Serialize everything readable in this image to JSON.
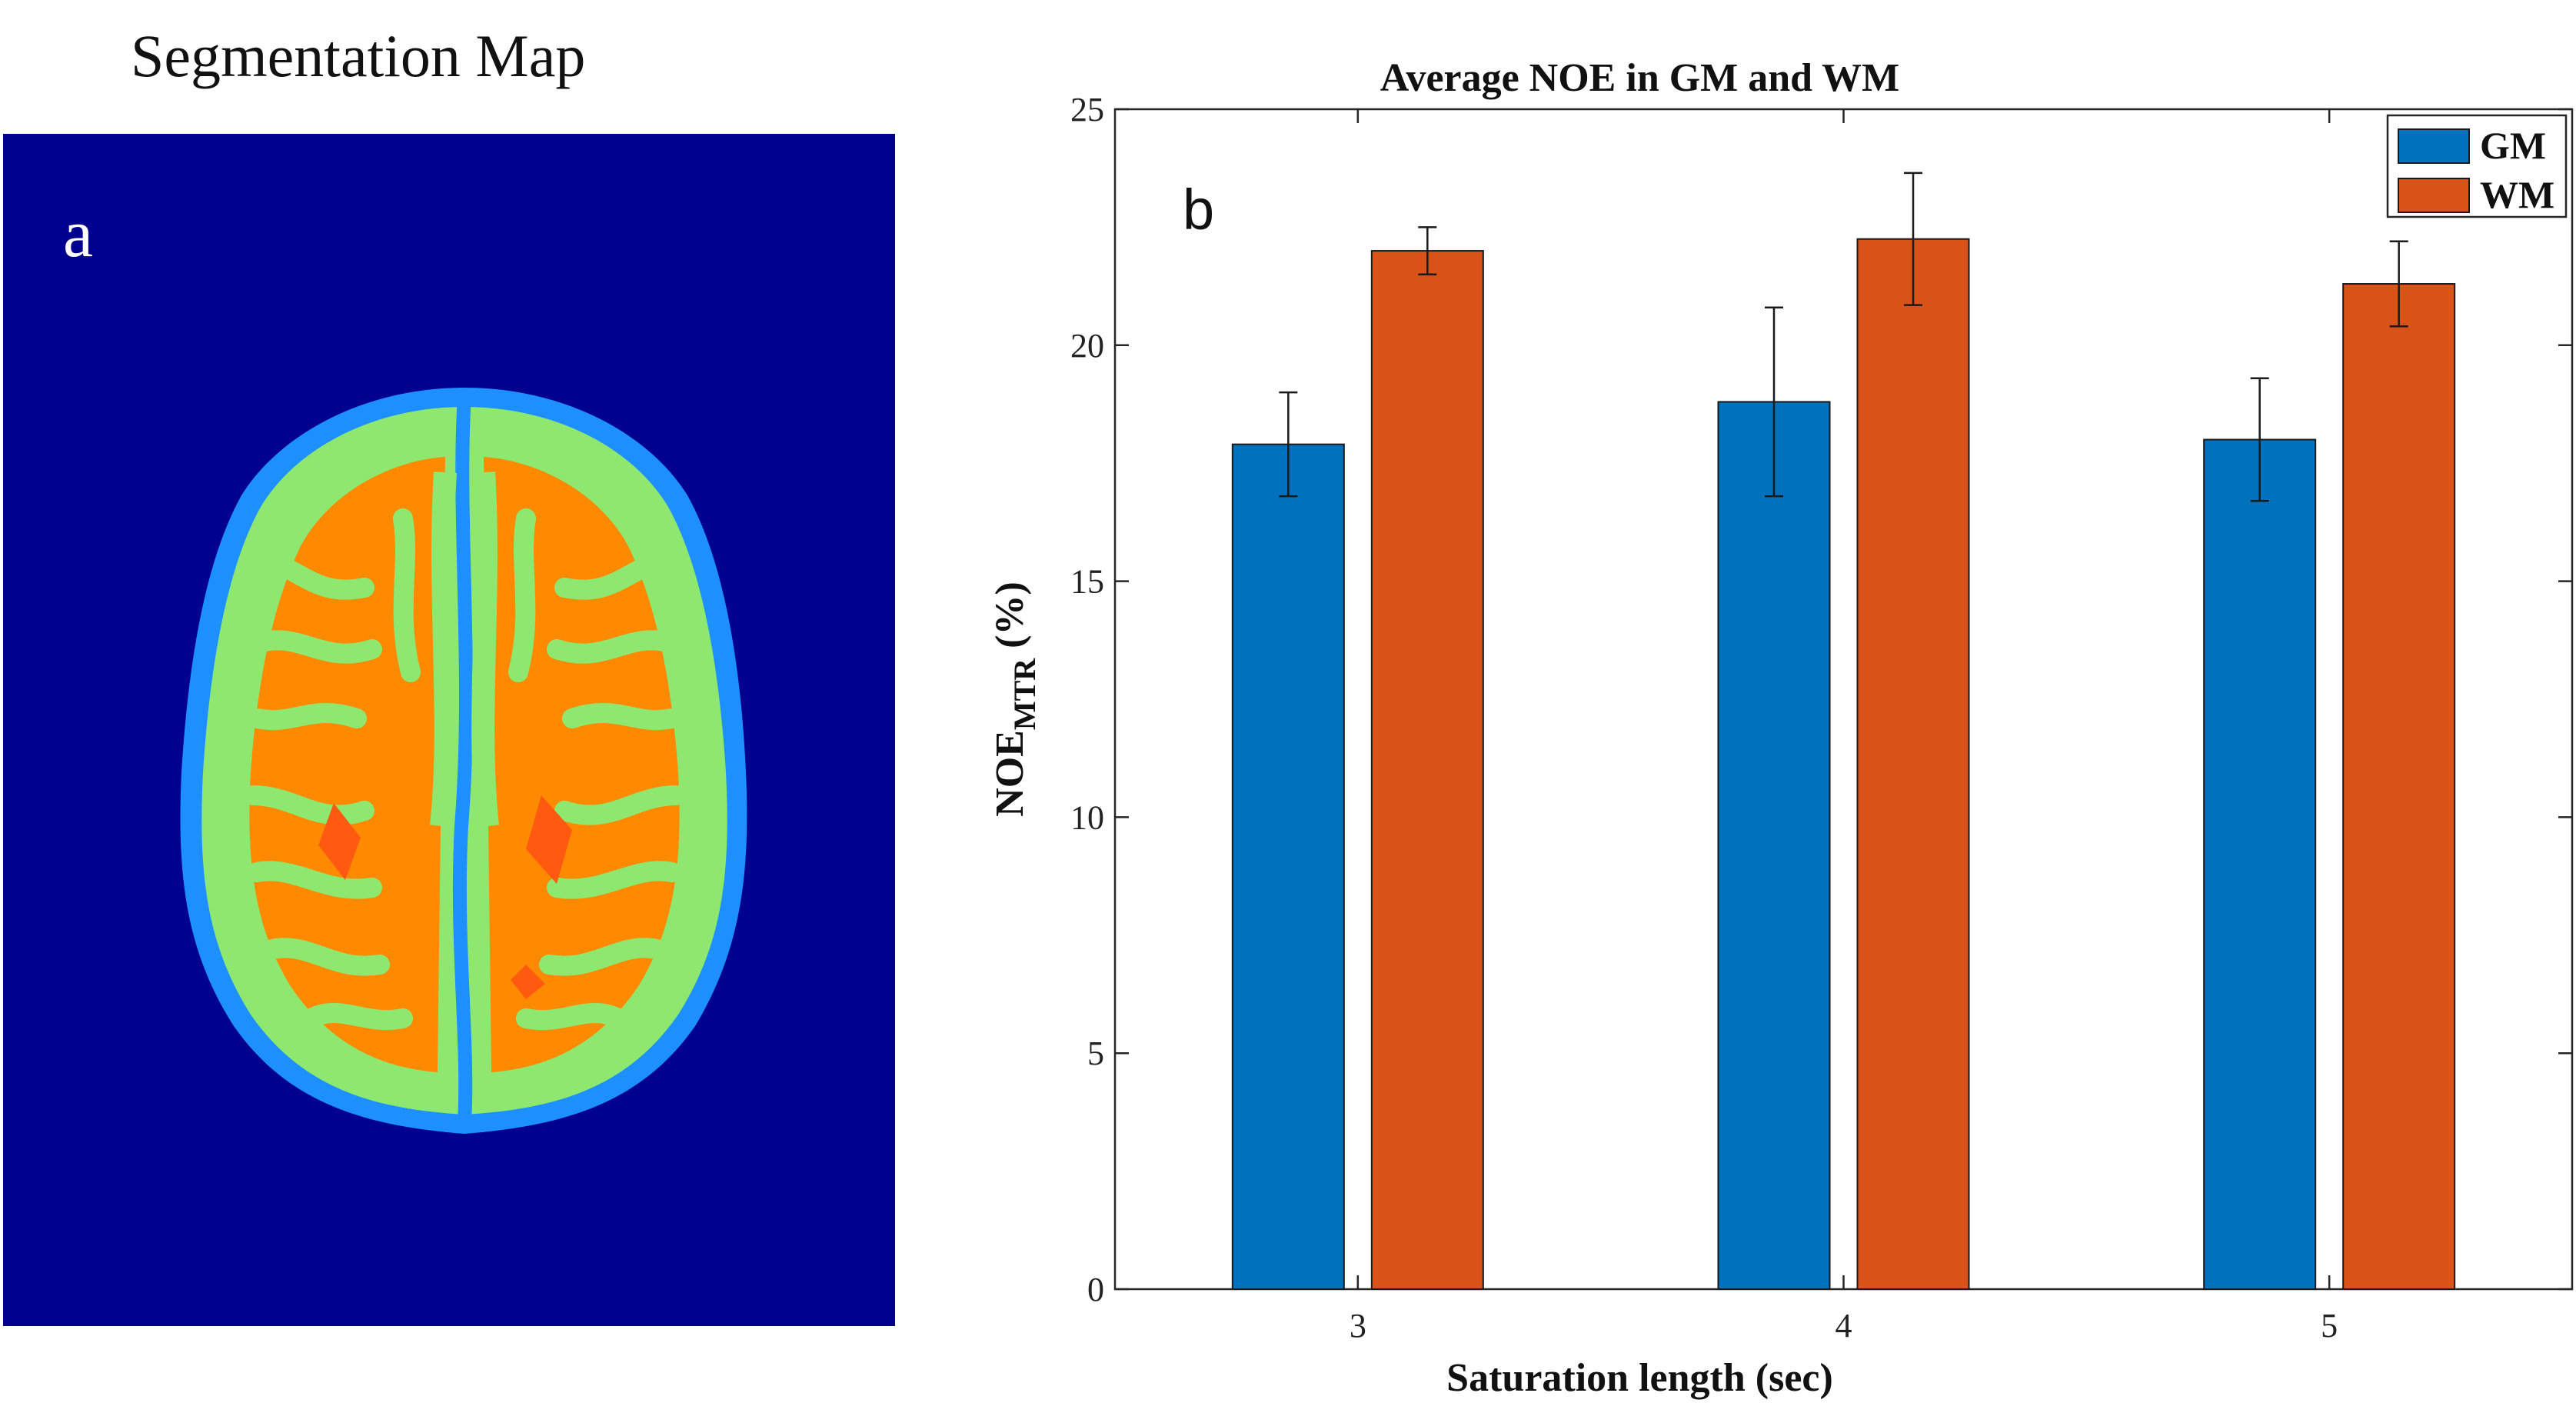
{
  "panel_a": {
    "title": "Segmentation Map",
    "label": "a",
    "colors": {
      "background": "#00008f",
      "csf": "#1e8fff",
      "gray_matter": "#8ee870",
      "white_matter": "#ff8a00",
      "deep_core": "#ff5a10"
    }
  },
  "panel_b": {
    "label": "b"
  },
  "chart_data": {
    "type": "bar",
    "title": "Average NOE in GM and WM",
    "xlabel": "Saturation length (sec)",
    "ylabel_main": "NOE",
    "ylabel_sub": "MTR",
    "ylabel_unit": " (%)",
    "categories": [
      "3",
      "4",
      "5"
    ],
    "ylim": [
      0,
      25
    ],
    "yticks": [
      "0",
      "5",
      "10",
      "15",
      "20",
      "25"
    ],
    "series": [
      {
        "name": "GM",
        "color": "#0072bd",
        "values": [
          17.9,
          18.8,
          18.0
        ],
        "errors": [
          1.1,
          2.0,
          1.3
        ]
      },
      {
        "name": "WM",
        "color": "#d95319",
        "values": [
          22.0,
          22.25,
          21.3
        ],
        "errors": [
          0.5,
          1.4,
          0.9
        ]
      }
    ],
    "legend_position": "top-right",
    "grid": false
  }
}
